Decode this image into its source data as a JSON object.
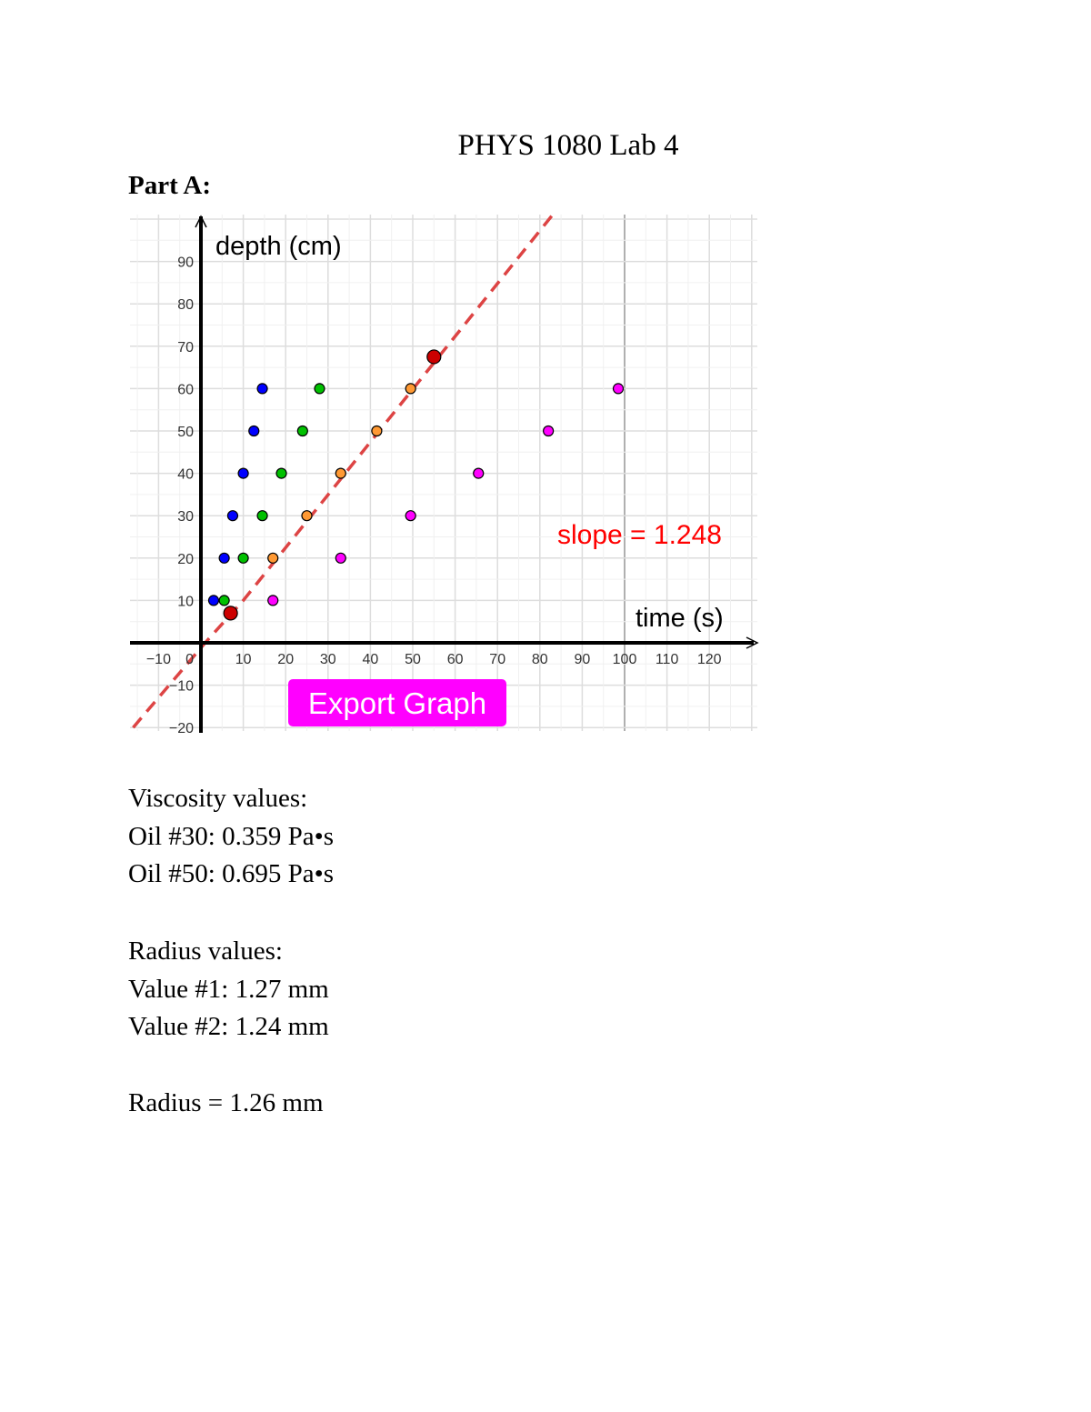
{
  "document": {
    "title": "PHYS 1080 Lab 4",
    "section_heading": "Part A:"
  },
  "chart_data": {
    "type": "scatter",
    "title": "",
    "xlabel": "time (s)",
    "ylabel": "depth (cm)",
    "xlim": [
      -16,
      130
    ],
    "ylim": [
      -20,
      100
    ],
    "grid": true,
    "x_ticks": [
      -10,
      10,
      20,
      30,
      40,
      50,
      60,
      70,
      80,
      90,
      100,
      110,
      120
    ],
    "x_tick_labels": [
      "−10",
      "10",
      "20",
      "30",
      "40",
      "50",
      "60",
      "70",
      "80",
      "90",
      "100",
      "110",
      "120"
    ],
    "y_ticks": [
      90,
      80,
      70,
      60,
      50,
      40,
      30,
      20,
      10,
      -10,
      -20
    ],
    "y_tick_labels": [
      "90",
      "80",
      "70",
      "60",
      "50",
      "40",
      "30",
      "20",
      "10",
      "−10",
      "−20"
    ],
    "origin_label": "0",
    "series": [
      {
        "color": "#0000ff",
        "points": [
          [
            3,
            10
          ],
          [
            5.5,
            20
          ],
          [
            7.5,
            30
          ],
          [
            10,
            40
          ],
          [
            12.5,
            50
          ],
          [
            14.5,
            60
          ]
        ]
      },
      {
        "color": "#00c000",
        "points": [
          [
            5.5,
            10
          ],
          [
            10,
            20
          ],
          [
            14.5,
            30
          ],
          [
            19,
            40
          ],
          [
            24,
            50
          ],
          [
            28,
            60
          ]
        ]
      },
      {
        "color": "#ff9933",
        "points": [
          [
            17,
            20
          ],
          [
            25,
            30
          ],
          [
            33,
            40
          ],
          [
            41.5,
            50
          ],
          [
            49.5,
            60
          ]
        ]
      },
      {
        "color": "#ff00ff",
        "points": [
          [
            17,
            10
          ],
          [
            33,
            20
          ],
          [
            49.5,
            30
          ],
          [
            65.5,
            40
          ],
          [
            82,
            50
          ],
          [
            98.5,
            60
          ]
        ]
      },
      {
        "color": "#cc0000",
        "points": [
          [
            7,
            7
          ],
          [
            55,
            67.5
          ]
        ]
      }
    ],
    "fit_line": {
      "color": "#dd4444",
      "style": "dashed",
      "points": [
        [
          -16,
          -20
        ],
        [
          1,
          0
        ],
        [
          10,
          10
        ],
        [
          83,
          101
        ]
      ]
    },
    "annotations": [
      {
        "id": "slope",
        "text": "slope = 1.248",
        "color": "#ff0000",
        "x": 105,
        "y": 25
      }
    ],
    "vertical_marker_x": 100,
    "button": {
      "label": "Export Graph",
      "color": "#ff00ff"
    }
  },
  "viscosity": {
    "heading": "Viscosity values:",
    "lines": [
      "Oil #30: 0.359 Pa•s",
      "Oil #50: 0.695 Pa•s"
    ]
  },
  "radius": {
    "heading": "Radius values:",
    "lines": [
      "Value #1: 1.27 mm",
      "Value #2: 1.24 mm"
    ],
    "result": "Radius = 1.26 mm"
  }
}
